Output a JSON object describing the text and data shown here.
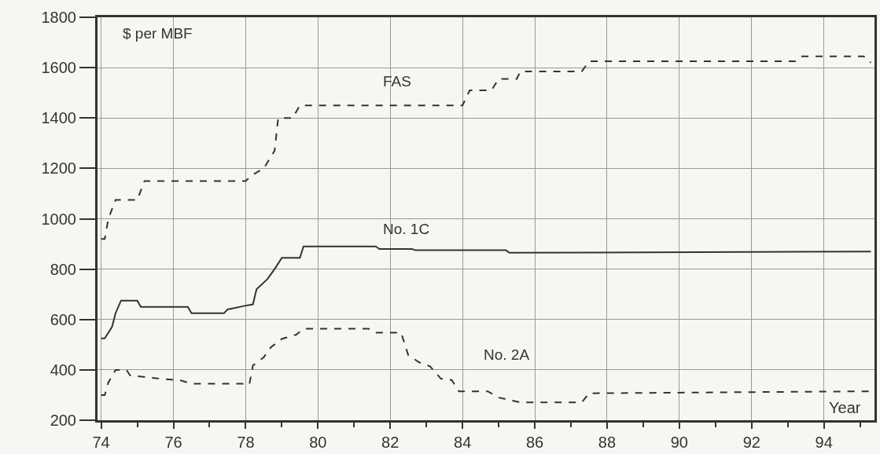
{
  "chart_data": {
    "type": "line",
    "ylabel": "$ per MBF",
    "xlabel": "Year",
    "xlim": [
      73.9,
      95.4
    ],
    "xticks": [
      74,
      76,
      78,
      80,
      82,
      84,
      86,
      88,
      90,
      92,
      94
    ],
    "ylim": [
      200,
      1800
    ],
    "yticks": [
      200,
      400,
      600,
      800,
      1000,
      1200,
      1400,
      1600,
      1800
    ],
    "grid": true,
    "legend": false,
    "series": [
      {
        "name": "FAS",
        "color": "#333333",
        "line_style": "dashed",
        "x": [
          74.0,
          74.1,
          74.2,
          74.4,
          75.0,
          75.2,
          78.0,
          78.2,
          78.5,
          78.8,
          78.9,
          79.3,
          79.5,
          84.0,
          84.2,
          84.8,
          85.0,
          85.5,
          85.6,
          87.3,
          87.5,
          93.2,
          93.4,
          95.1,
          95.3
        ],
        "values": [
          920,
          920,
          1000,
          1075,
          1075,
          1150,
          1150,
          1175,
          1200,
          1270,
          1400,
          1400,
          1450,
          1450,
          1510,
          1510,
          1555,
          1555,
          1585,
          1585,
          1625,
          1625,
          1645,
          1645,
          1620
        ]
      },
      {
        "name": "No. 1C",
        "color": "#333333",
        "line_style": "solid",
        "x": [
          74.0,
          74.1,
          74.3,
          74.4,
          74.55,
          75.0,
          75.1,
          76.4,
          76.5,
          77.4,
          77.5,
          78.0,
          78.2,
          78.3,
          78.6,
          78.8,
          79.0,
          79.5,
          79.6,
          81.6,
          81.7,
          82.6,
          82.7,
          85.2,
          85.3,
          95.3
        ],
        "values": [
          525,
          525,
          570,
          625,
          675,
          675,
          650,
          650,
          625,
          625,
          640,
          655,
          660,
          720,
          760,
          800,
          845,
          845,
          890,
          890,
          880,
          880,
          875,
          875,
          865,
          870
        ]
      },
      {
        "name": "No. 2A",
        "color": "#333333",
        "line_style": "dashed",
        "x": [
          74.0,
          74.1,
          74.2,
          74.4,
          74.7,
          74.8,
          75.5,
          76.2,
          76.5,
          77.9,
          78.1,
          78.2,
          78.5,
          78.7,
          79.0,
          79.4,
          79.6,
          81.4,
          81.6,
          82.3,
          82.5,
          82.8,
          83.1,
          83.4,
          83.7,
          83.9,
          84.7,
          85.0,
          85.6,
          87.3,
          87.5,
          95.3
        ],
        "values": [
          300,
          300,
          350,
          400,
          400,
          378,
          367,
          358,
          345,
          345,
          341,
          417,
          450,
          490,
          523,
          540,
          563,
          563,
          548,
          548,
          458,
          430,
          414,
          365,
          360,
          315,
          315,
          290,
          271,
          271,
          307,
          315
        ]
      }
    ]
  }
}
